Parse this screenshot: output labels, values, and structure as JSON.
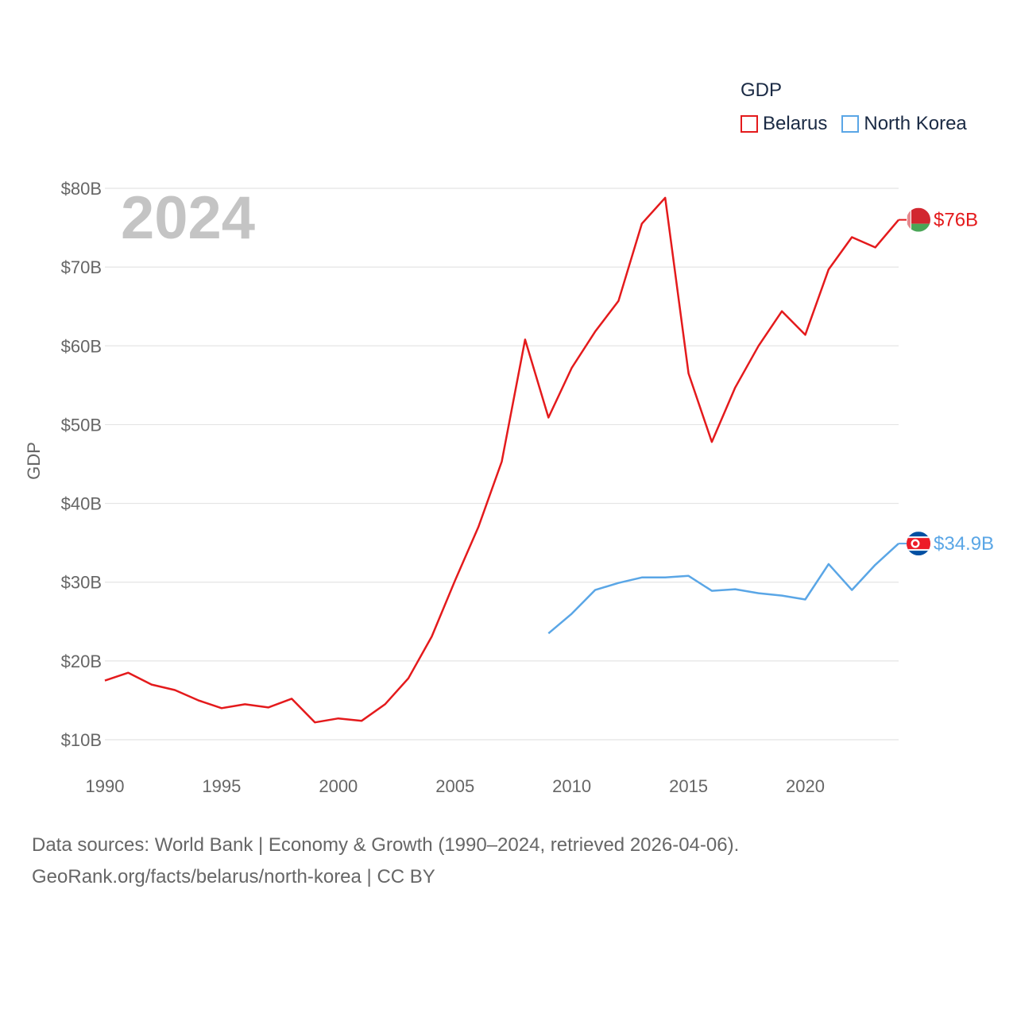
{
  "legend": {
    "title": "GDP",
    "items": [
      {
        "label": "Belarus",
        "color": "#e41a1c"
      },
      {
        "label": "North Korea",
        "color": "#5aa6e6"
      }
    ]
  },
  "footer": {
    "line1": "Data sources: World Bank | Economy & Growth (1990–2024, retrieved 2026-04-06).",
    "line2": "GeoRank.org/facts/belarus/north-korea | CC BY"
  },
  "chart_data": {
    "type": "line",
    "title": "GDP",
    "year_label": "2024",
    "xlabel": "",
    "ylabel": "GDP",
    "xlim": [
      1990,
      2024
    ],
    "ylim": [
      8,
      81
    ],
    "x_ticks": [
      1990,
      1995,
      2000,
      2005,
      2010,
      2015,
      2020
    ],
    "y_ticks": [
      10,
      20,
      30,
      40,
      50,
      60,
      70,
      80
    ],
    "y_tick_labels": [
      "$10B",
      "$20B",
      "$30B",
      "$40B",
      "$50B",
      "$60B",
      "$70B",
      "$80B"
    ],
    "grid": true,
    "legend_position": "top-right",
    "series": [
      {
        "name": "Belarus",
        "color": "#e41a1c",
        "end_label": "$76B",
        "flag": "belarus",
        "x": [
          1990,
          1991,
          1992,
          1993,
          1994,
          1995,
          1996,
          1997,
          1998,
          1999,
          2000,
          2001,
          2002,
          2003,
          2004,
          2005,
          2006,
          2007,
          2008,
          2009,
          2010,
          2011,
          2012,
          2013,
          2014,
          2015,
          2016,
          2017,
          2018,
          2019,
          2020,
          2021,
          2022,
          2023,
          2024
        ],
        "values": [
          17.5,
          18.5,
          17.0,
          16.3,
          15.0,
          14.0,
          14.5,
          14.1,
          15.2,
          12.2,
          12.7,
          12.4,
          14.5,
          17.8,
          23.1,
          30.2,
          37.0,
          45.3,
          60.8,
          50.9,
          57.2,
          61.8,
          65.7,
          75.5,
          78.8,
          56.5,
          47.8,
          54.7,
          60.0,
          64.4,
          61.4,
          69.7,
          73.8,
          72.5,
          76.0
        ]
      },
      {
        "name": "North Korea",
        "color": "#5aa6e6",
        "end_label": "$34.9B",
        "flag": "north-korea",
        "x": [
          2009,
          2010,
          2011,
          2012,
          2013,
          2014,
          2015,
          2016,
          2017,
          2018,
          2019,
          2020,
          2021,
          2022,
          2023,
          2024
        ],
        "values": [
          23.5,
          26.0,
          29.0,
          29.9,
          30.6,
          30.6,
          30.8,
          28.9,
          29.1,
          28.6,
          28.3,
          27.8,
          32.3,
          29.0,
          32.2,
          34.9
        ]
      }
    ]
  }
}
